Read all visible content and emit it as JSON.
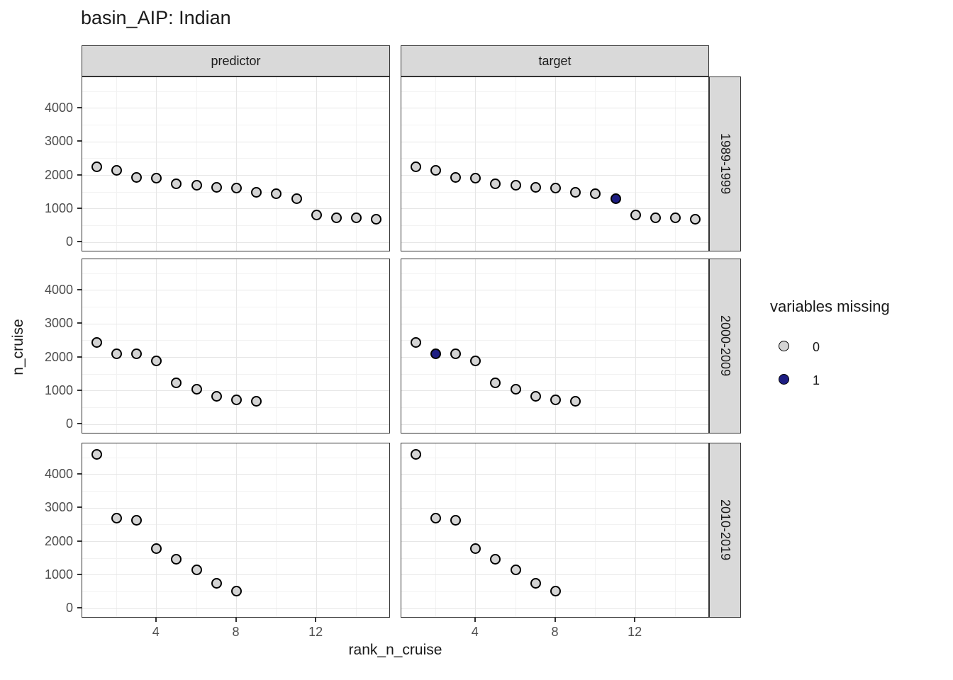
{
  "title": "basin_AIP: Indian",
  "colors": {
    "point_fill": "#d4d4d4",
    "point_missing_fill": "#1d1d82",
    "point_stroke": "#000000",
    "strip_fill": "#d9d9d9",
    "grid_major": "#e6e6e6",
    "grid_minor": "#f2f2f2",
    "panel_border": "#333333",
    "tick_label": "#4d4d4d"
  },
  "chart_data": {
    "type": "scatter",
    "title": "basin_AIP: Indian",
    "xlabel": "rank_n_cruise",
    "ylabel": "n_cruise",
    "facet_col_labels": [
      "predictor",
      "target"
    ],
    "facet_row_labels": [
      "1989-1999",
      "2000-2009",
      "2010-2019"
    ],
    "x_ticks": [
      4,
      8,
      12
    ],
    "x_minor_ticks": [
      2,
      6,
      10,
      14
    ],
    "y_ticks": [
      0,
      1000,
      2000,
      3000,
      4000
    ],
    "y_minor_ticks": [
      500,
      1500,
      2500,
      3500,
      4500
    ],
    "xlim": [
      0.28,
      15.72
    ],
    "ylim": [
      -296,
      4931
    ],
    "grid": true,
    "legend": {
      "title": "variables missing",
      "position": "right",
      "items": [
        {
          "label": "0",
          "color": "#d4d4d4"
        },
        {
          "label": "1",
          "color": "#1d1d82"
        }
      ]
    },
    "rows": [
      {
        "label": "1989-1999",
        "x": [
          1,
          2,
          3,
          4,
          5,
          6,
          7,
          8,
          9,
          10,
          11,
          12,
          13,
          14,
          15
        ],
        "n_cruise": [
          2250,
          2140,
          1930,
          1920,
          1750,
          1710,
          1640,
          1610,
          1500,
          1460,
          1310,
          820,
          735,
          720,
          690
        ],
        "target_missing_x": [
          11
        ]
      },
      {
        "label": "2000-2009",
        "x": [
          1,
          2,
          3,
          4,
          5,
          6,
          7,
          8,
          9
        ],
        "n_cruise": [
          2450,
          2110,
          2110,
          1890,
          1230,
          1050,
          830,
          730,
          690
        ],
        "target_missing_x": [
          2
        ]
      },
      {
        "label": "2010-2019",
        "x": [
          1,
          2,
          3,
          4,
          5,
          6,
          7,
          8
        ],
        "n_cruise": [
          4600,
          2690,
          2630,
          1780,
          1480,
          1150,
          750,
          510
        ],
        "target_missing_x": []
      }
    ]
  }
}
